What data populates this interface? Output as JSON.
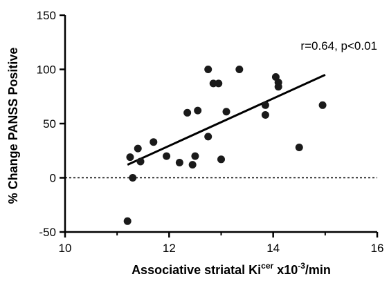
{
  "chart_data": {
    "type": "scatter",
    "xlabel": {
      "base": "Associative striatal Ki",
      "superscript": "cer",
      "mid": " x10",
      "exponent": "-3",
      "suffix": "/min"
    },
    "ylabel": "% Change PANSS Positive",
    "xlim": [
      10,
      16
    ],
    "ylim": [
      -50,
      150
    ],
    "x_ticks": [
      10,
      12,
      14,
      16
    ],
    "y_ticks": [
      -50,
      0,
      50,
      100,
      150
    ],
    "annotation": "r=0.64, p<0.01",
    "reference_line_y": 0,
    "regression_line": {
      "x": [
        11.2,
        15.0
      ],
      "y": [
        12,
        95
      ]
    },
    "points": [
      {
        "x": 11.2,
        "y": -40
      },
      {
        "x": 11.25,
        "y": 19
      },
      {
        "x": 11.3,
        "y": 0
      },
      {
        "x": 11.4,
        "y": 27
      },
      {
        "x": 11.45,
        "y": 15
      },
      {
        "x": 11.7,
        "y": 33
      },
      {
        "x": 11.95,
        "y": 20
      },
      {
        "x": 12.2,
        "y": 14
      },
      {
        "x": 12.35,
        "y": 60
      },
      {
        "x": 12.45,
        "y": 12
      },
      {
        "x": 12.5,
        "y": 20
      },
      {
        "x": 12.55,
        "y": 62
      },
      {
        "x": 12.75,
        "y": 38
      },
      {
        "x": 12.75,
        "y": 100
      },
      {
        "x": 12.85,
        "y": 87
      },
      {
        "x": 12.95,
        "y": 87
      },
      {
        "x": 13.0,
        "y": 17
      },
      {
        "x": 13.1,
        "y": 61
      },
      {
        "x": 13.35,
        "y": 100
      },
      {
        "x": 13.85,
        "y": 67
      },
      {
        "x": 13.85,
        "y": 58
      },
      {
        "x": 14.05,
        "y": 93
      },
      {
        "x": 14.1,
        "y": 84
      },
      {
        "x": 14.1,
        "y": 88
      },
      {
        "x": 14.5,
        "y": 28
      },
      {
        "x": 14.95,
        "y": 67
      }
    ]
  }
}
